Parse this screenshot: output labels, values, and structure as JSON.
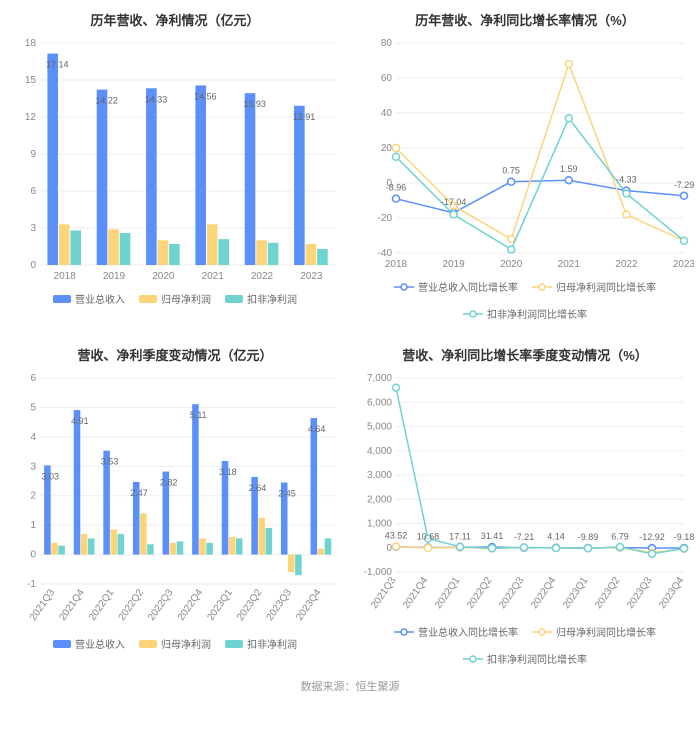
{
  "colors": {
    "series_revenue": "#5b8ff9",
    "series_netprofit": "#fcd479",
    "series_nonrecur": "#6fd3cf",
    "grid": "#eeeeee",
    "axis": "#cccccc",
    "background": "#ffffff",
    "text": "#888888",
    "title": "#333333"
  },
  "source_text": "数据来源：恒生聚源",
  "panels": {
    "tl": {
      "title": "历年营收、净利情况（亿元）",
      "type": "bar",
      "categories": [
        "2018",
        "2019",
        "2020",
        "2021",
        "2022",
        "2023"
      ],
      "ylim": [
        0,
        18
      ],
      "ytick_step": 3,
      "label_series_index": 0,
      "series": [
        {
          "name": "营业总收入",
          "color": "#5b8ff9",
          "values": [
            17.14,
            14.22,
            14.33,
            14.56,
            13.93,
            12.91
          ]
        },
        {
          "name": "归母净利润",
          "color": "#fcd479",
          "values": [
            3.3,
            2.9,
            2.0,
            3.3,
            2.0,
            1.7
          ]
        },
        {
          "name": "扣非净利润",
          "color": "#6fd3cf",
          "values": [
            2.8,
            2.6,
            1.7,
            2.1,
            1.8,
            1.3
          ]
        }
      ],
      "bar_group_width": 0.7,
      "title_fontsize": 13,
      "label_fontsize": 10
    },
    "tr": {
      "title": "历年营收、净利同比增长率情况（%）",
      "type": "line",
      "categories": [
        "2018",
        "2019",
        "2020",
        "2021",
        "2022",
        "2023"
      ],
      "ylim": [
        -40,
        80
      ],
      "ytick_step": 20,
      "label_series_index": 0,
      "series": [
        {
          "name": "营业总收入同比增长率",
          "color": "#5b8ff9",
          "values": [
            -8.96,
            -17.04,
            0.75,
            1.59,
            -4.33,
            -7.29
          ]
        },
        {
          "name": "归母净利润同比增长率",
          "color": "#fcd479",
          "values": [
            20,
            -13,
            -32,
            68,
            -18,
            -33
          ]
        },
        {
          "name": "扣非净利润同比增长率",
          "color": "#6fd3cf",
          "values": [
            15,
            -18,
            -38,
            37,
            -6,
            -33
          ]
        }
      ],
      "marker_radius": 3.5,
      "line_width": 1.5,
      "title_fontsize": 13,
      "label_fontsize": 10
    },
    "bl": {
      "title": "营收、净利季度变动情况（亿元）",
      "type": "bar",
      "categories": [
        "2021Q3",
        "2021Q4",
        "2022Q1",
        "2022Q2",
        "2022Q3",
        "2022Q4",
        "2023Q1",
        "2023Q2",
        "2023Q3",
        "2023Q4"
      ],
      "ylim": [
        -1,
        6
      ],
      "ytick_step": 1,
      "label_series_index": 0,
      "series": [
        {
          "name": "营业总收入",
          "color": "#5b8ff9",
          "values": [
            3.03,
            4.91,
            3.53,
            2.47,
            2.82,
            5.11,
            3.18,
            2.64,
            2.45,
            4.64
          ]
        },
        {
          "name": "归母净利润",
          "color": "#fcd479",
          "values": [
            0.4,
            0.7,
            0.85,
            1.4,
            0.4,
            0.55,
            0.6,
            1.25,
            -0.6,
            0.2
          ]
        },
        {
          "name": "扣非净利润",
          "color": "#6fd3cf",
          "values": [
            0.3,
            0.55,
            0.7,
            0.35,
            0.45,
            0.4,
            0.55,
            0.9,
            -0.7,
            0.55
          ]
        }
      ],
      "bar_group_width": 0.72,
      "rotate_x": true,
      "title_fontsize": 13,
      "label_fontsize": 10
    },
    "br": {
      "title": "营收、净利同比增长率季度变动情况（%）",
      "type": "line",
      "categories": [
        "2021Q3",
        "2021Q4",
        "2022Q1",
        "2022Q2",
        "2022Q3",
        "2022Q4",
        "2023Q1",
        "2023Q2",
        "2023Q3",
        "2023Q4"
      ],
      "ylim": [
        -1000,
        7000
      ],
      "ytick_step": 1000,
      "label_series_index": 0,
      "series": [
        {
          "name": "营业总收入同比增长率",
          "color": "#5b8ff9",
          "values": [
            43.52,
            10.68,
            17.11,
            31.41,
            -7.21,
            4.14,
            -9.89,
            6.79,
            -12.92,
            -9.18
          ]
        },
        {
          "name": "归母净利润同比增长率",
          "color": "#fcd479",
          "values": [
            50,
            -10,
            20,
            -30,
            10,
            -5,
            -15,
            10,
            -200,
            -40
          ]
        },
        {
          "name": "扣非净利润同比增长率",
          "color": "#6fd3cf",
          "values": [
            6600,
            380,
            40,
            -20,
            15,
            -10,
            -20,
            30,
            -250,
            -30
          ]
        }
      ],
      "marker_radius": 3.5,
      "line_width": 1.5,
      "rotate_x": true,
      "title_fontsize": 13,
      "label_fontsize": 10,
      "ytick_format": "comma"
    }
  }
}
